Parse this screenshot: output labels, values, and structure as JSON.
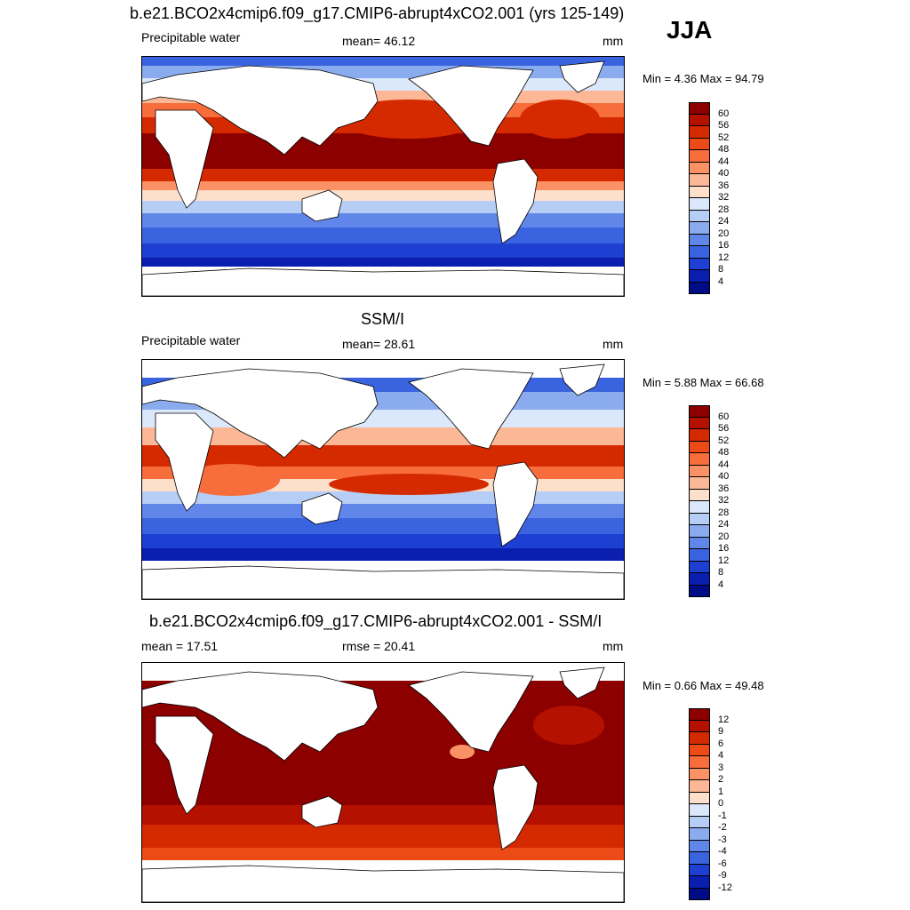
{
  "season": "JJA",
  "panels": [
    {
      "title": "b.e21.BCO2x4cmip6.f09_g17.CMIP6-abrupt4xCO2.001 (yrs 125-149)",
      "left_label": "Precipitable water",
      "center_label": "mean=  46.12",
      "units": "mm",
      "min_max": "Min =   4.36 Max =  94.79"
    },
    {
      "title": "SSM/I",
      "left_label": "Precipitable water",
      "center_label": "mean=  28.61",
      "units": "mm",
      "min_max": "Min =   5.88 Max =  66.68"
    },
    {
      "title": "b.e21.BCO2x4cmip6.f09_g17.CMIP6-abrupt4xCO2.001 - SSM/I",
      "left_label": "mean =  17.51",
      "center_label": "rmse =  20.41",
      "units": "mm",
      "min_max": "Min =   0.66 Max =  49.48"
    }
  ],
  "chart_data": [
    {
      "type": "heatmap",
      "title": "b.e21.BCO2x4cmip6.f09_g17.CMIP6-abrupt4xCO2.001 (yrs 125-149)",
      "variable": "Precipitable water",
      "units": "mm",
      "mean": 46.12,
      "min": 4.36,
      "max": 94.79,
      "colorbar_ticks": [
        60,
        56,
        52,
        48,
        44,
        40,
        36,
        32,
        28,
        24,
        20,
        16,
        12,
        8,
        4
      ],
      "colorbar_colors": [
        "#8c0000",
        "#b41100",
        "#d52a00",
        "#ec4a16",
        "#f76d3c",
        "#fb9266",
        "#fcb796",
        "#fde0cc",
        "#dbe8fb",
        "#b6cdf5",
        "#8aacef",
        "#5f86e8",
        "#3a63df",
        "#1d3fd2",
        "#0a1fb0",
        "#000c85"
      ]
    },
    {
      "type": "heatmap",
      "title": "SSM/I",
      "variable": "Precipitable water",
      "units": "mm",
      "mean": 28.61,
      "min": 5.88,
      "max": 66.68,
      "colorbar_ticks": [
        60,
        56,
        52,
        48,
        44,
        40,
        36,
        32,
        28,
        24,
        20,
        16,
        12,
        8,
        4
      ],
      "colorbar_colors": [
        "#8c0000",
        "#b41100",
        "#d52a00",
        "#ec4a16",
        "#f76d3c",
        "#fb9266",
        "#fcb796",
        "#fde0cc",
        "#dbe8fb",
        "#b6cdf5",
        "#8aacef",
        "#5f86e8",
        "#3a63df",
        "#1d3fd2",
        "#0a1fb0",
        "#000c85"
      ]
    },
    {
      "type": "heatmap",
      "title": "b.e21.BCO2x4cmip6.f09_g17.CMIP6-abrupt4xCO2.001 - SSM/I",
      "units": "mm",
      "mean": 17.51,
      "rmse": 20.41,
      "min": 0.66,
      "max": 49.48,
      "colorbar_ticks": [
        12,
        9,
        6,
        4,
        3,
        2,
        1,
        0,
        -1,
        -2,
        -3,
        -4,
        -6,
        -9,
        -12
      ],
      "colorbar_colors": [
        "#8c0000",
        "#b41100",
        "#d52a00",
        "#ec4a16",
        "#f76d3c",
        "#fb9266",
        "#fcb796",
        "#fde0cc",
        "#dbe8fb",
        "#b6cdf5",
        "#8aacef",
        "#5f86e8",
        "#3a63df",
        "#1d3fd2",
        "#0a1fb0",
        "#000c85"
      ]
    }
  ]
}
